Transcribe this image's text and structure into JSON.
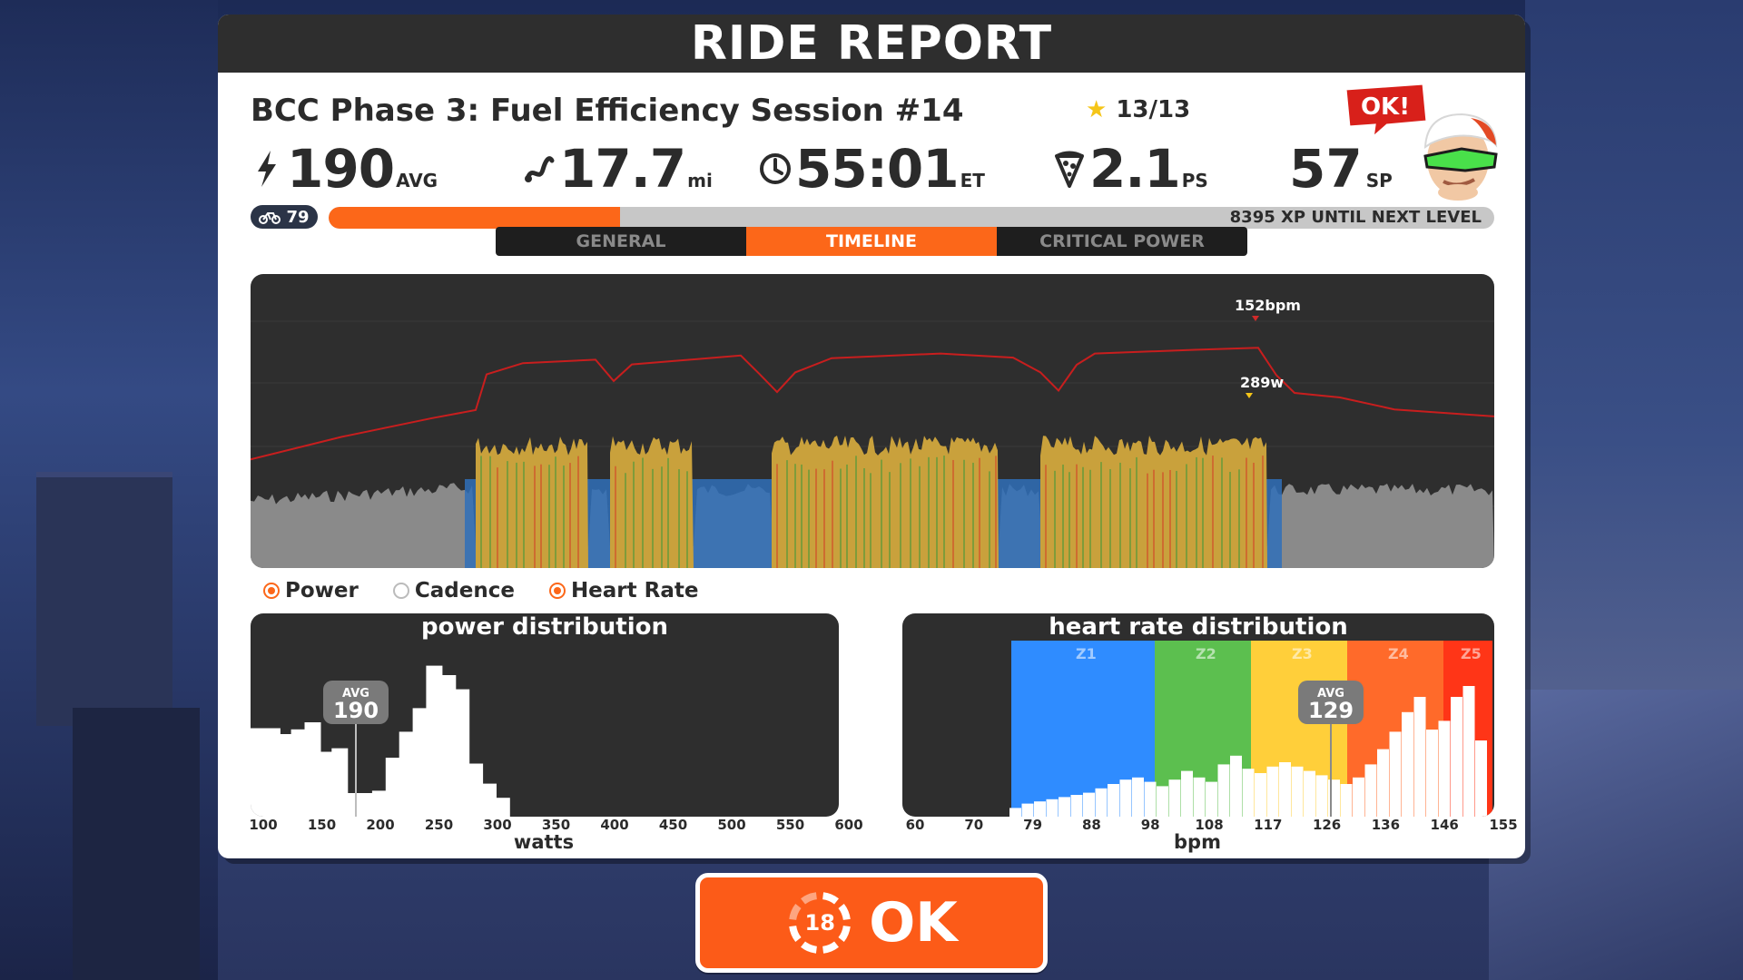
{
  "panel": {
    "title": "RIDE REPORT"
  },
  "workout": {
    "name": "BCC Phase 3: Fuel Efficiency Session #14",
    "stars": "13/13"
  },
  "stats": {
    "power_value": "190",
    "power_unit": "AVG",
    "distance_value": "17.7",
    "distance_unit": "mi",
    "time_value": "55:01",
    "time_unit": "ET",
    "ps_value": "2.1",
    "ps_unit": "PS",
    "sp_value": "57",
    "sp_unit": "SP"
  },
  "ok_bubble": "OK!",
  "level": {
    "number": "79",
    "progress": 0.25,
    "xp_text": "8395 XP UNTIL NEXT LEVEL"
  },
  "tabs": [
    {
      "label": "GENERAL",
      "active": false
    },
    {
      "label": "TIMELINE",
      "active": true
    },
    {
      "label": "CRITICAL POWER",
      "active": false
    }
  ],
  "timeline": {
    "hr_peak_label": "152bpm",
    "power_peak_label": "289w"
  },
  "legend": [
    {
      "label": "Power",
      "on": true
    },
    {
      "label": "Cadence",
      "on": false
    },
    {
      "label": "Heart Rate",
      "on": true
    }
  ],
  "power_distribution": {
    "title": "power distribution",
    "avg_label": "AVG",
    "avg_value": "190",
    "axis_title": "watts",
    "ticks": [
      "100",
      "150",
      "200",
      "250",
      "300",
      "350",
      "400",
      "450",
      "500",
      "550",
      "600"
    ]
  },
  "hr_distribution": {
    "title": "heart rate distribution",
    "avg_label": "AVG",
    "avg_value": "129",
    "axis_title": "bpm",
    "zones": [
      "Z1",
      "Z2",
      "Z3",
      "Z4",
      "Z5"
    ],
    "ticks": [
      "60",
      "70",
      "79",
      "88",
      "98",
      "108",
      "117",
      "126",
      "136",
      "146",
      "155"
    ]
  },
  "ok_button": {
    "label": "OK",
    "countdown": "18"
  },
  "colors": {
    "accent": "#fc6719",
    "panel_dark": "#2e2e2e",
    "z1": "#2f8cff",
    "z2": "#5cbf4f",
    "z3": "#ffcf3a",
    "z4": "#ff6a2a",
    "z5": "#ff3517",
    "hr_line": "#c81e1e",
    "power_fill": "#c9a13c"
  }
}
